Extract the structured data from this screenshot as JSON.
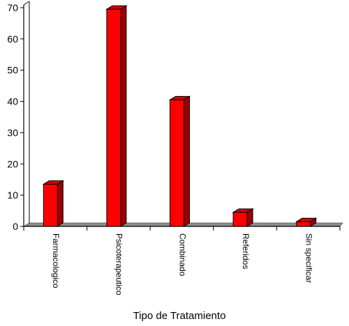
{
  "chart_data": {
    "type": "bar",
    "style": "3d-column",
    "categories": [
      "Farmacologico",
      "Psicoterapeutico",
      "Combinado",
      "Referidos",
      "Sin specificar"
    ],
    "values": [
      13.5,
      69.5,
      40.5,
      4.5,
      1.5
    ],
    "title": "",
    "xlabel": "Tipo de Tratamiento",
    "ylabel": "",
    "ylim": [
      0,
      70
    ],
    "yticks": [
      0,
      10,
      20,
      30,
      40,
      50,
      60,
      70
    ],
    "grid": false,
    "legend": "none",
    "colors": {
      "bar_front": "#ff0000",
      "bar_side": "#9c0000",
      "bar_top": "#d40000",
      "floor": "#8c8c8c",
      "axis": "#000000"
    }
  }
}
